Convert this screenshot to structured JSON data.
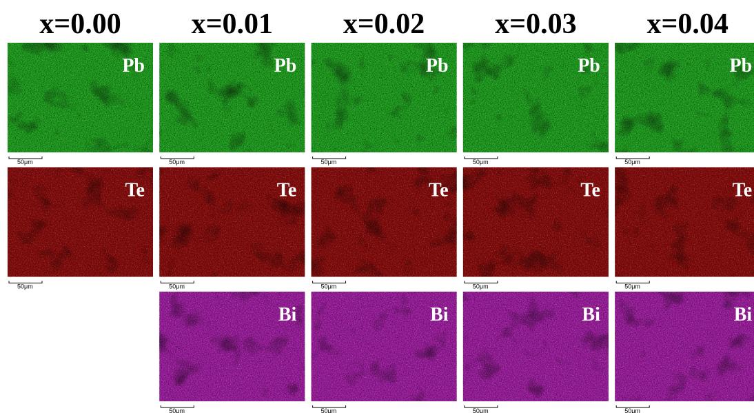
{
  "columns": [
    {
      "title": "x=0.00",
      "panels": [
        {
          "label": "Pb",
          "scale_bar": "50μm"
        },
        {
          "label": "Te",
          "scale_bar": "50μm"
        }
      ]
    },
    {
      "title": "x=0.01",
      "panels": [
        {
          "label": "Pb",
          "scale_bar": "50μm"
        },
        {
          "label": "Te",
          "scale_bar": "50μm"
        },
        {
          "label": "Bi",
          "scale_bar": "50μm"
        }
      ]
    },
    {
      "title": "x=0.02",
      "panels": [
        {
          "label": "Pb",
          "scale_bar": "50μm"
        },
        {
          "label": "Te",
          "scale_bar": "50μm"
        },
        {
          "label": "Bi",
          "scale_bar": "50μm"
        }
      ]
    },
    {
      "title": "x=0.03",
      "panels": [
        {
          "label": "Pb",
          "scale_bar": "50μm"
        },
        {
          "label": "Te",
          "scale_bar": "50μm"
        },
        {
          "label": "Bi",
          "scale_bar": "50μm"
        }
      ]
    },
    {
      "title": "x=0.04",
      "panels": [
        {
          "label": "Pb",
          "scale_bar": "50μm"
        },
        {
          "label": "Te",
          "scale_bar": "50μm"
        },
        {
          "label": "Bi",
          "scale_bar": "50μm"
        }
      ]
    }
  ]
}
